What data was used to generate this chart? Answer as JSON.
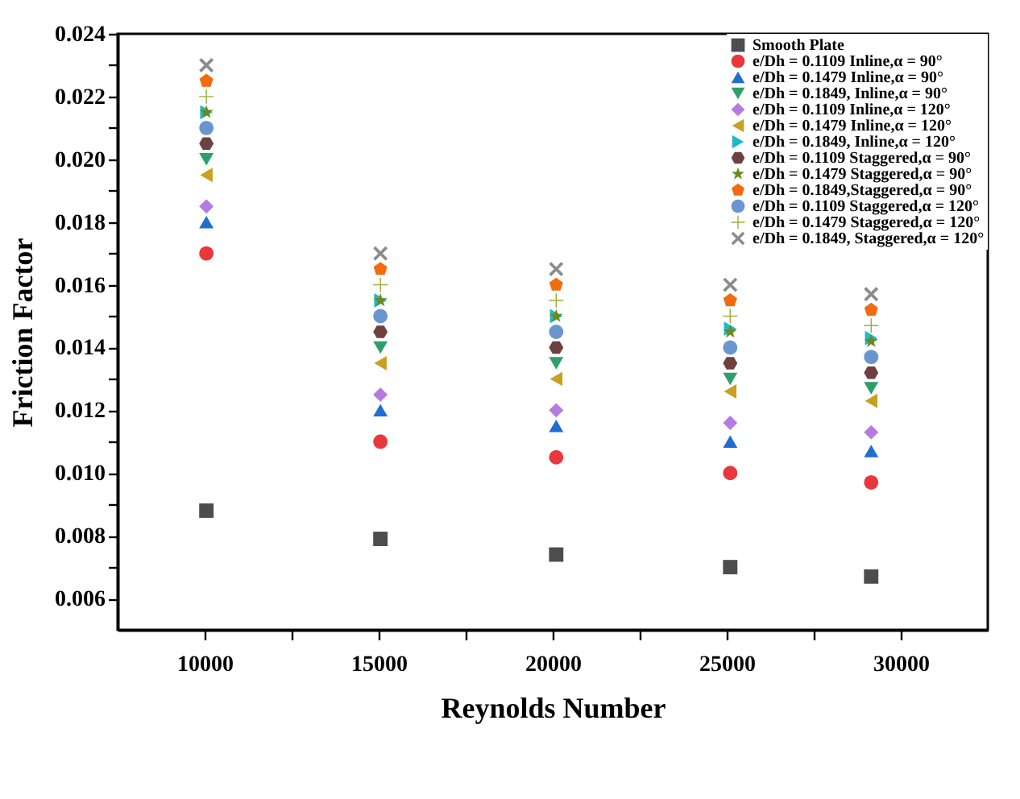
{
  "chart_data": {
    "type": "scatter",
    "xlabel": "Reynolds Number",
    "ylabel": "Friction Factor",
    "x": [
      10050,
      15050,
      20100,
      25100,
      29150
    ],
    "xlim": [
      7500,
      32500
    ],
    "xticks": [
      10000,
      {
        "value": 12500,
        "label": null
      },
      15000,
      {
        "value": 17500,
        "label": null
      },
      20000,
      {
        "value": 22500,
        "label": null
      },
      25000,
      {
        "value": 27500,
        "label": null
      },
      30000
    ],
    "ylim": [
      0.005,
      0.024
    ],
    "yticks": [
      {
        "value": 0.006,
        "label": "0.006"
      },
      {
        "value": 0.007,
        "label": null
      },
      {
        "value": 0.008,
        "label": "0.008"
      },
      {
        "value": 0.009,
        "label": null
      },
      {
        "value": 0.01,
        "label": "0.010"
      },
      {
        "value": 0.011,
        "label": null
      },
      {
        "value": 0.012,
        "label": "0.012"
      },
      {
        "value": 0.013,
        "label": null
      },
      {
        "value": 0.014,
        "label": "0.014"
      },
      {
        "value": 0.015,
        "label": null
      },
      {
        "value": 0.016,
        "label": "0.016"
      },
      {
        "value": 0.017,
        "label": null
      },
      {
        "value": 0.018,
        "label": "0.018"
      },
      {
        "value": 0.019,
        "label": null
      },
      {
        "value": 0.02,
        "label": "0.020"
      },
      {
        "value": 0.021,
        "label": null
      },
      {
        "value": 0.022,
        "label": "0.022"
      },
      {
        "value": 0.023,
        "label": null
      },
      {
        "value": 0.024,
        "label": "0.024"
      }
    ],
    "grid": false,
    "legend": "top right",
    "series": [
      {
        "name": "Smooth Plate",
        "color": "#4d4d4d",
        "marker": "square",
        "values": [
          0.0088,
          0.0079,
          0.0074,
          0.007,
          0.0067
        ]
      },
      {
        "name": "e/Dh = 0.1109 Inline,α = 90°",
        "color": "#e8383d",
        "marker": "circle",
        "values": [
          0.017,
          0.011,
          0.0105,
          0.01,
          0.0097
        ]
      },
      {
        "name": "e/Dh = 0.1479 Inline,α = 90°",
        "color": "#1f6fd1",
        "marker": "triangle-up",
        "values": [
          0.018,
          0.012,
          0.0115,
          0.011,
          0.0107
        ]
      },
      {
        "name": "e/Dh = 0.1849, Inline,α = 90°",
        "color": "#2e9e6b",
        "marker": "triangle-down",
        "values": [
          0.02,
          0.014,
          0.0135,
          0.013,
          0.0127
        ]
      },
      {
        "name": "e/Dh = 0.1109 Inline,α = 120°",
        "color": "#b57be0",
        "marker": "diamond",
        "values": [
          0.0185,
          0.0125,
          0.012,
          0.0116,
          0.0113
        ]
      },
      {
        "name": "e/Dh = 0.1479 Inline,α = 120°",
        "color": "#c9a020",
        "marker": "triangle-left",
        "values": [
          0.0195,
          0.0135,
          0.013,
          0.0126,
          0.0123
        ]
      },
      {
        "name": "e/Dh = 0.1849, Inline,α = 120°",
        "color": "#1fb8c9",
        "marker": "triangle-right",
        "values": [
          0.0215,
          0.0155,
          0.015,
          0.0146,
          0.0143
        ]
      },
      {
        "name": "e/Dh = 0.1109 Staggered,α = 90°",
        "color": "#6e4040",
        "values": [
          0.0205,
          0.0145,
          0.014,
          0.0135,
          0.0132
        ]
      },
      {
        "name": "e/Dh = 0.1479 Staggered,α = 90°",
        "color": "#6b8a1e",
        "marker": "star",
        "values": [
          0.0215,
          0.0155,
          0.015,
          0.0145,
          0.0142
        ]
      },
      {
        "name": "e/Dh = 0.1849,Staggered,α = 90°",
        "color": "#f26b0f",
        "values": [
          0.0225,
          0.0165,
          0.016,
          0.0155,
          0.0152
        ]
      },
      {
        "name": "e/Dh = 0.1109 Staggered,α = 120°",
        "color": "#6a96cf",
        "marker": "circle",
        "values": [
          0.021,
          0.015,
          0.0145,
          0.014,
          0.0137
        ]
      },
      {
        "name": "e/Dh = 0.1479 Staggered,α = 120°",
        "color": "#9aae3a",
        "marker": "plus",
        "values": [
          0.022,
          0.016,
          0.0155,
          0.015,
          0.0147
        ]
      },
      {
        "name": "e/Dh = 0.1849, Staggered,α = 120°",
        "color": "#8c8c8c",
        "marker": "cross",
        "values": [
          0.023,
          0.017,
          0.0165,
          0.016,
          0.0157
        ]
      }
    ]
  }
}
